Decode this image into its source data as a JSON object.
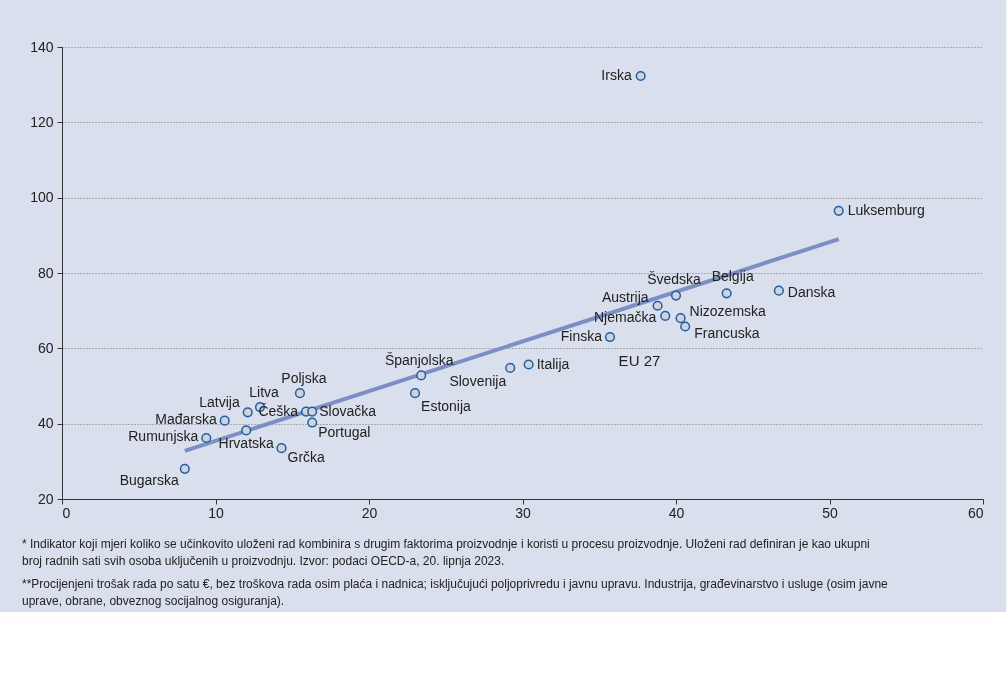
{
  "chart_data": {
    "type": "scatter",
    "marker": "circle",
    "grid": "y",
    "xlim": [
      0,
      60
    ],
    "xticks": [
      0,
      10,
      20,
      30,
      40,
      50,
      60
    ],
    "ylim": [
      20,
      140
    ],
    "yticks": [
      20,
      40,
      60,
      80,
      100,
      120,
      140
    ],
    "series": [
      {
        "color": "#1f5fa8",
        "x": [
          37.7,
          50.6,
          46.7,
          43.3,
          40.0,
          38.8,
          39.3,
          40.3,
          40.6,
          35.7,
          30.4,
          29.2,
          23.4,
          23.0,
          15.5,
          12.9,
          12.1,
          10.6,
          12.0,
          9.4,
          8.0,
          14.3,
          15.9,
          16.3,
          16.3
        ],
        "values": [
          132.3,
          96.5,
          75.3,
          74.6,
          74.0,
          71.3,
          68.6,
          68.0,
          65.8,
          63.0,
          55.7,
          54.8,
          52.8,
          48.1,
          48.1,
          44.4,
          43.0,
          40.8,
          38.2,
          36.2,
          28.0,
          33.5,
          43.2,
          43.2,
          40.3
        ],
        "value_labels": [
          "Irska",
          "Luksemburg",
          "Danska",
          "Belgija",
          "Švedska",
          "Austrija",
          "Njemačka",
          "Nizozemska",
          "Francuska",
          "Finska",
          "Italija",
          "Slovenija",
          "Španjolska",
          "Estonija",
          "Poljska",
          "Litva",
          "Latvija",
          "Mađarska",
          "Hrvatska",
          "Rumunjska",
          "Bugarska",
          "Grčka",
          "Češka",
          "Slovačka",
          "Portugal"
        ]
      },
      {
        "type": "line",
        "marker": "none",
        "color": "#7b8fc6",
        "x": [
          8.0,
          50.6
        ],
        "values": [
          32.8,
          89.0
        ]
      }
    ],
    "annotations": [
      "EU 27",
      "* Indikator koji mjeri koliko se učinkovito uloženi rad kombinira s drugim faktorima proizvodnje i koristi u procesu proizvodnje. Uloženi rad definiran je kao ukupni broj radnih sati svih osoba uključenih u proizvodnju. Izvor: podaci OECD-a, 20. lipnja 2023.",
      "**Procijenjeni trošak rada po satu €, bez troškova rada osim plaća i nadnica; isključujući poljoprivredu i javnu upravu. Industrija, građevinarstvo i usluge (osim javne uprave, obrane, obveznog socijalnog osiguranja)."
    ]
  }
}
